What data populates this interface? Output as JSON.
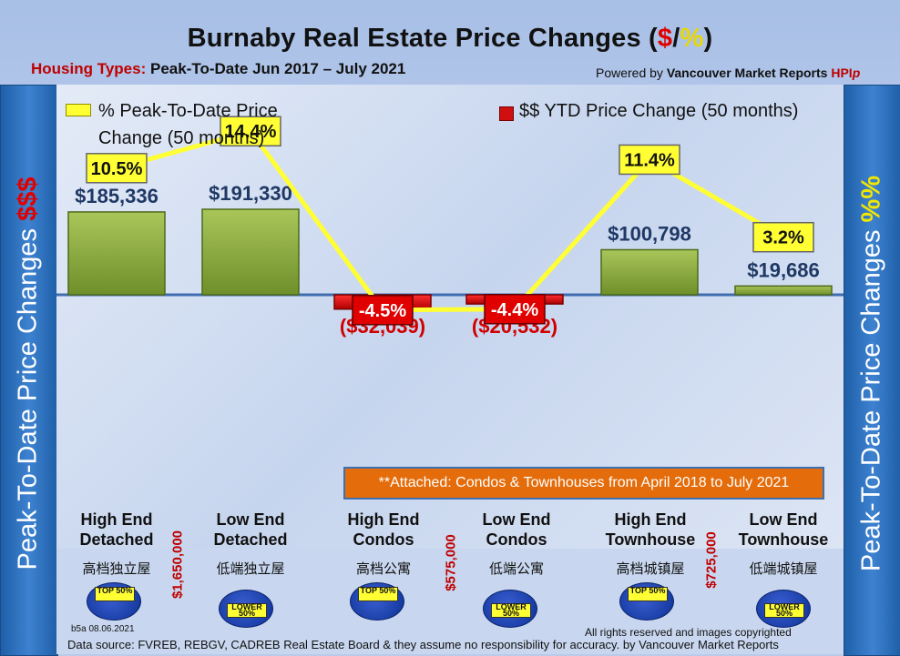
{
  "title": {
    "main": "Burnaby Real Estate Price Changes (",
    "dollar": "$",
    "slash": "/",
    "pct": "%",
    "close": ")"
  },
  "subtitle": {
    "label": "Housing Types:",
    "range": "Peak-To-Date Jun 2017 – July 2021"
  },
  "powered": {
    "prefix": "Powered by ",
    "brand": "Vancouver Market Reports",
    "hp": "HPI",
    "hp_i": "p"
  },
  "left_axis": {
    "text": "Peak-To-Date Price Changes ",
    "suffix": "$$$",
    "suffix_color": "#e00000"
  },
  "right_axis": {
    "text": "Peak-To-Date  Price  Changes  ",
    "suffix": "%%",
    "suffix_color": "#f2e600"
  },
  "legend": {
    "pct": "% Peak-To-Date Price Change (50 months)",
    "pct_line1": "% Peak-To-Date Price",
    "pct_line2": "Change (50 months)",
    "dollar": "$$ YTD Price Change (50 months)"
  },
  "note": "**Attached: Condos & Townhouses from April 2018 to July 2021",
  "categories": [
    {
      "line1": "High End",
      "line2": "Detached",
      "zh": "高档独立屋",
      "badge": "TOP 50%"
    },
    {
      "line1": "Low End",
      "line2": "Detached",
      "zh": "低端独立屋",
      "badge": "LOWER 50%"
    },
    {
      "line1": "High End",
      "line2": "Condos",
      "zh": "高档公寓",
      "badge": "TOP 50%"
    },
    {
      "line1": "Low End",
      "line2": "Condos",
      "zh": "低端公寓",
      "badge": "LOWER 50%"
    },
    {
      "line1": "High End",
      "line2": "Townhouse",
      "zh": "高档城镇屋",
      "badge": "TOP 50%"
    },
    {
      "line1": "Low End",
      "line2": "Townhouse",
      "zh": "低端城镇屋",
      "badge": "LOWER 50%"
    }
  ],
  "thresholds": [
    "$1,650,000",
    "$575,000",
    "$725,000"
  ],
  "chart_data": {
    "type": "bar",
    "title": "Burnaby Real Estate Price Changes ($/%)",
    "categories": [
      "High End Detached",
      "Low End Detached",
      "High End Condos",
      "Low End Condos",
      "High End Townhouse",
      "Low End Townhouse"
    ],
    "series": [
      {
        "name": "$$ YTD Price Change (50 months)",
        "type": "bar",
        "values": [
          185336,
          191330,
          -32039,
          -20532,
          100798,
          19686
        ],
        "labels": [
          "$185,336",
          "$191,330",
          "($32,039)",
          "($20,532)",
          "$100,798",
          "$19,686"
        ],
        "color_pos": "#8fae3c",
        "color_neg": "#e01010"
      },
      {
        "name": "% Peak-To-Date Price Change (50 months)",
        "type": "line",
        "values": [
          10.5,
          14.4,
          -4.5,
          -4.4,
          11.4,
          3.2
        ],
        "labels": [
          "10.5%",
          "14.4%",
          "-4.5%",
          "-4.4%",
          "11.4%",
          "3.2%"
        ],
        "color": "#ffff33"
      }
    ],
    "legend": "top"
  },
  "footer": {
    "code": "b5a 08.06.2021",
    "rights": "All rights reserved and  images copyrighted",
    "source": "Data source: FVREB, REBGV, CADREB Real Estate Board & they assume no responsibility for accuracy. by Vancouver Market Reports"
  }
}
